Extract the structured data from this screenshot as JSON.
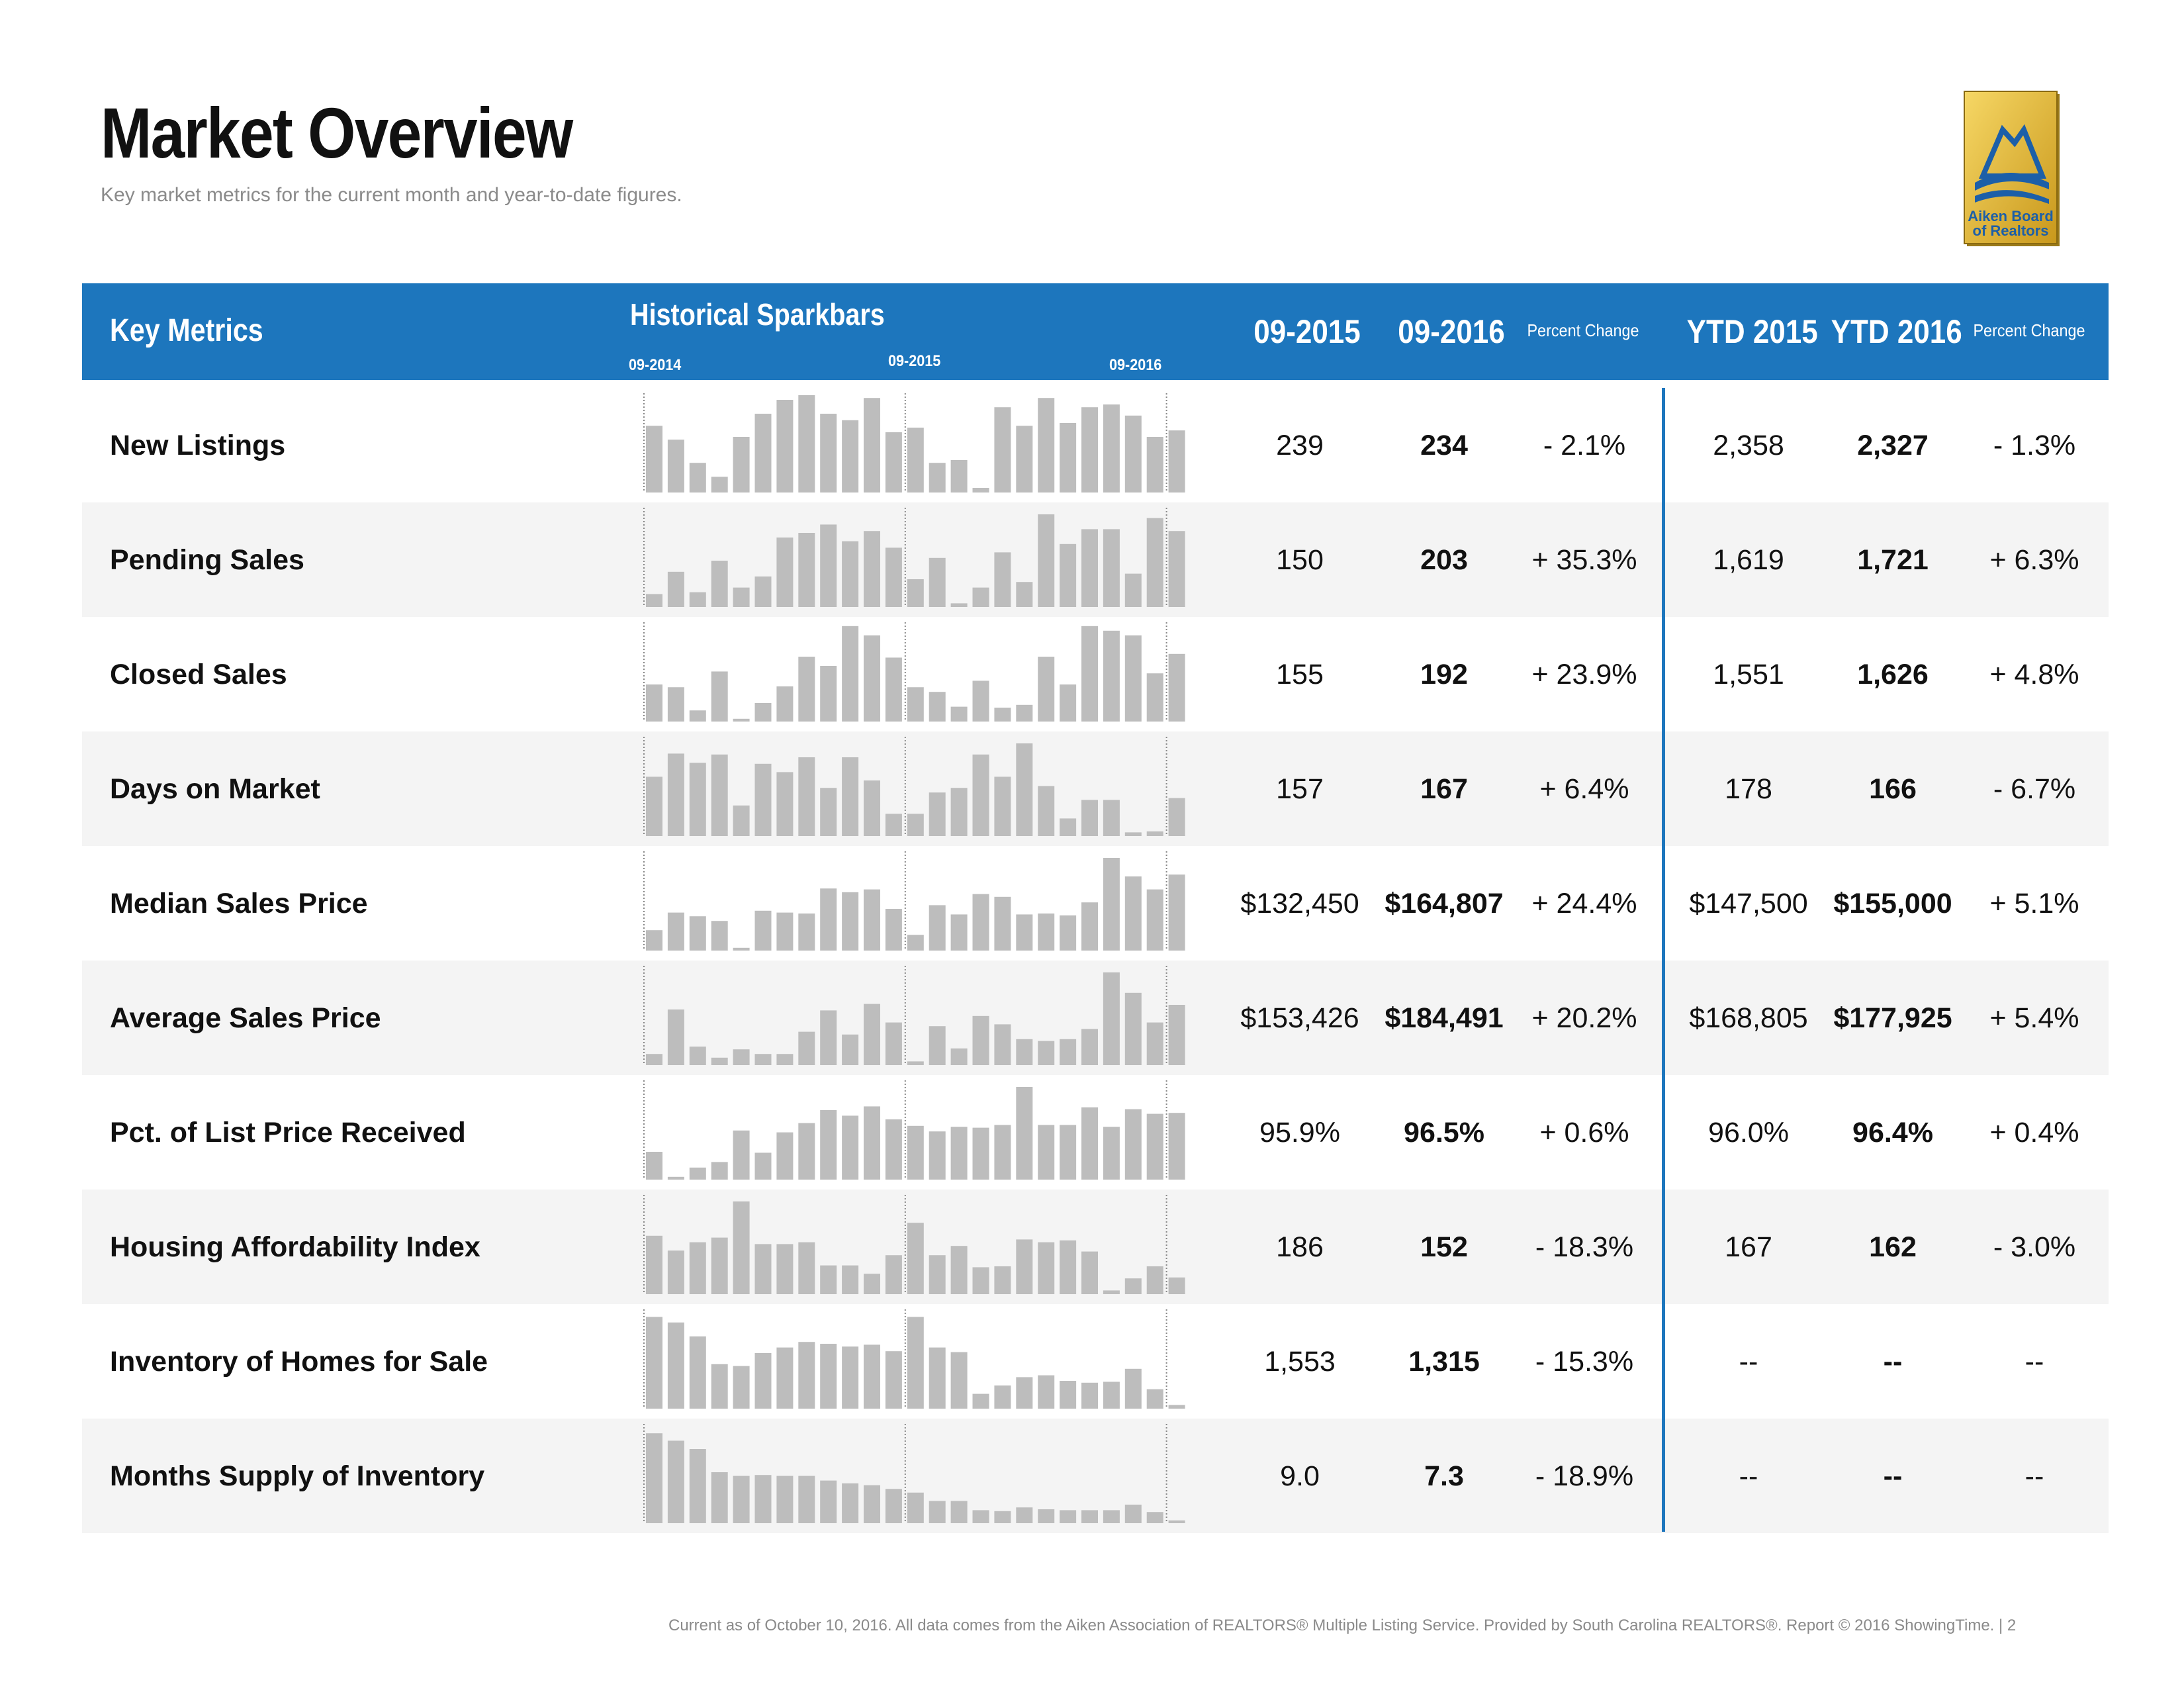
{
  "page": {
    "title": "Market Overview",
    "subtitle": "Key market metrics for the current month and year-to-date figures.",
    "logo_text_line1": "Aiken Board",
    "logo_text_line2": "of Realtors",
    "footer": "Current as of October 10, 2016. All data comes from the Aiken Association of REALTORS® Multiple Listing Service. Provided by South Carolina REALTORS®. Report © 2016 ShowingTime.  |  2"
  },
  "colors": {
    "header_bg": "#1d76bd",
    "bar": "#bdbdbd",
    "row_shade": "#f4f4f4",
    "divider": "#1d76bd"
  },
  "header": {
    "key_metrics": "Key Metrics",
    "historical_sparkbars": "Historical Sparkbars",
    "spark_date_start": "09-2014",
    "spark_date_mid": "09-2015",
    "spark_date_end": "09-2016",
    "col_2015": "09-2015",
    "col_2016": "09-2016",
    "percent_change": "Percent Change",
    "ytd_2015": "YTD 2015",
    "ytd_2016": "YTD 2016",
    "ytd_percent_change": "Percent Change"
  },
  "rows": [
    {
      "metric": "New Listings",
      "v2015": "239",
      "v2016": "234",
      "pct": "- 2.1%",
      "ytd2015": "2,358",
      "ytd2016": "2,327",
      "ytdpct": "- 1.3%",
      "spark": [
        0.72,
        0.57,
        0.32,
        0.17,
        0.6,
        0.85,
        1.0,
        1.05,
        0.85,
        0.78,
        1.02,
        0.65,
        0.7,
        0.32,
        0.35,
        0.05,
        0.92,
        0.72,
        1.02,
        0.75,
        0.92,
        0.95,
        0.83,
        0.6,
        0.67
      ]
    },
    {
      "metric": "Pending Sales",
      "v2015": "150",
      "v2016": "203",
      "pct": "+ 35.3%",
      "ytd2015": "1,619",
      "ytd2016": "1,721",
      "ytdpct": "+ 6.3%",
      "spark": [
        0.14,
        0.38,
        0.16,
        0.5,
        0.21,
        0.33,
        0.75,
        0.8,
        0.89,
        0.71,
        0.82,
        0.64,
        0.3,
        0.53,
        0.04,
        0.21,
        0.59,
        0.27,
        1.0,
        0.68,
        0.84,
        0.84,
        0.36,
        0.96,
        0.82
      ]
    },
    {
      "metric": "Closed Sales",
      "v2015": "155",
      "v2016": "192",
      "pct": "+ 23.9%",
      "ytd2015": "1,551",
      "ytd2016": "1,626",
      "ytdpct": "+ 4.8%",
      "spark": [
        0.4,
        0.37,
        0.12,
        0.54,
        0.03,
        0.2,
        0.38,
        0.7,
        0.6,
        1.03,
        0.93,
        0.69,
        0.37,
        0.32,
        0.16,
        0.44,
        0.15,
        0.18,
        0.7,
        0.4,
        1.03,
        0.98,
        0.93,
        0.52,
        0.73
      ]
    },
    {
      "metric": "Days on Market",
      "v2015": "157",
      "v2016": "167",
      "pct": "+ 6.4%",
      "ytd2015": "178",
      "ytd2016": "166",
      "ytdpct": "- 6.7%",
      "spark": [
        0.64,
        0.89,
        0.79,
        0.88,
        0.33,
        0.78,
        0.69,
        0.85,
        0.52,
        0.85,
        0.6,
        0.24,
        0.24,
        0.47,
        0.52,
        0.88,
        0.64,
        1.0,
        0.54,
        0.19,
        0.39,
        0.39,
        0.04,
        0.05,
        0.41
      ]
    },
    {
      "metric": "Median Sales Price",
      "v2015": "$132,450",
      "v2016": "$164,807",
      "pct": "+ 24.4%",
      "ytd2015": "$147,500",
      "ytd2016": "$155,000",
      "ytdpct": "+ 5.1%",
      "spark": [
        0.22,
        0.41,
        0.37,
        0.32,
        0.03,
        0.43,
        0.41,
        0.4,
        0.67,
        0.63,
        0.66,
        0.45,
        0.17,
        0.49,
        0.39,
        0.61,
        0.58,
        0.39,
        0.4,
        0.38,
        0.52,
        1.0,
        0.8,
        0.66,
        0.82
      ]
    },
    {
      "metric": "Average Sales Price",
      "v2015": "$153,426",
      "v2016": "$184,491",
      "pct": "+ 20.2%",
      "ytd2015": "$168,805",
      "ytd2016": "$177,925",
      "ytdpct": "+ 5.4%",
      "spark": [
        0.12,
        0.6,
        0.2,
        0.08,
        0.17,
        0.12,
        0.12,
        0.36,
        0.59,
        0.33,
        0.66,
        0.46,
        0.04,
        0.42,
        0.18,
        0.53,
        0.44,
        0.28,
        0.26,
        0.28,
        0.39,
        1.0,
        0.78,
        0.46,
        0.65
      ]
    },
    {
      "metric": "Pct. of List Price Received",
      "v2015": "95.9%",
      "v2016": "96.5%",
      "pct": "+ 0.6%",
      "ytd2015": "96.0%",
      "ytd2016": "96.4%",
      "ytdpct": "+ 0.4%",
      "spark": [
        0.3,
        0.03,
        0.13,
        0.19,
        0.53,
        0.29,
        0.51,
        0.61,
        0.75,
        0.69,
        0.79,
        0.65,
        0.58,
        0.52,
        0.57,
        0.56,
        0.59,
        1.0,
        0.59,
        0.59,
        0.78,
        0.57,
        0.76,
        0.71,
        0.72
      ]
    },
    {
      "metric": "Housing Affordability Index",
      "v2015": "186",
      "v2016": "152",
      "pct": "- 18.3%",
      "ytd2015": "167",
      "ytd2016": "162",
      "ytdpct": "- 3.0%",
      "spark": [
        0.63,
        0.47,
        0.56,
        0.61,
        1.0,
        0.54,
        0.54,
        0.56,
        0.31,
        0.31,
        0.22,
        0.42,
        0.77,
        0.42,
        0.52,
        0.29,
        0.3,
        0.59,
        0.56,
        0.58,
        0.46,
        0.04,
        0.17,
        0.3,
        0.18
      ]
    },
    {
      "metric": "Inventory of Homes for Sale",
      "v2015": "1,553",
      "v2016": "1,315",
      "pct": "- 15.3%",
      "ytd2015": "--",
      "ytd2016": "--",
      "ytdpct": "--",
      "spark": [
        0.99,
        0.93,
        0.78,
        0.48,
        0.46,
        0.6,
        0.66,
        0.72,
        0.7,
        0.67,
        0.69,
        0.62,
        0.99,
        0.66,
        0.61,
        0.16,
        0.25,
        0.34,
        0.36,
        0.3,
        0.28,
        0.29,
        0.43,
        0.21,
        0.04
      ]
    },
    {
      "metric": "Months Supply of Inventory",
      "v2015": "9.0",
      "v2016": "7.3",
      "pct": "- 18.9%",
      "ytd2015": "--",
      "ytd2016": "--",
      "ytdpct": "--",
      "spark": [
        0.97,
        0.89,
        0.8,
        0.55,
        0.51,
        0.52,
        0.51,
        0.51,
        0.46,
        0.43,
        0.41,
        0.37,
        0.33,
        0.24,
        0.24,
        0.14,
        0.13,
        0.17,
        0.15,
        0.14,
        0.14,
        0.14,
        0.2,
        0.12,
        0.03
      ]
    }
  ]
}
